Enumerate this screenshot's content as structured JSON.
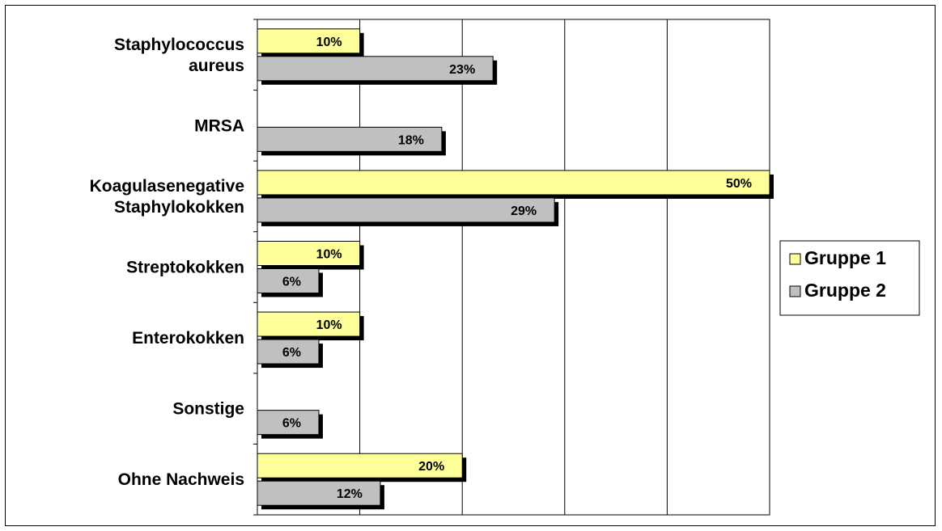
{
  "chart_data": {
    "type": "bar",
    "orientation": "horizontal",
    "categories": [
      [
        "Staphylococcus",
        "aureus"
      ],
      [
        "MRSA"
      ],
      [
        "Koagulasenegative",
        "Staphylokokken"
      ],
      [
        "Streptokokken"
      ],
      [
        "Enterokokken"
      ],
      [
        "Sonstige"
      ],
      [
        "Ohne Nachweis"
      ]
    ],
    "series": [
      {
        "name": "Gruppe 1",
        "color": "#ffff99",
        "values": [
          10,
          null,
          50,
          10,
          10,
          null,
          20
        ],
        "labels": [
          "10%",
          "",
          "50%",
          "10%",
          "10%",
          "",
          "20%"
        ]
      },
      {
        "name": "Gruppe 2",
        "color": "#c0c0c0",
        "values": [
          23,
          18,
          29,
          6,
          6,
          6,
          12
        ],
        "labels": [
          "23%",
          "18%",
          "29%",
          "6%",
          "6%",
          "6%",
          "12%"
        ]
      }
    ],
    "xlim": [
      0,
      50
    ],
    "x_gridlines": [
      10,
      20,
      30,
      40,
      50
    ],
    "grid": true,
    "legend": "right",
    "title": "",
    "xlabel": "",
    "ylabel": ""
  }
}
